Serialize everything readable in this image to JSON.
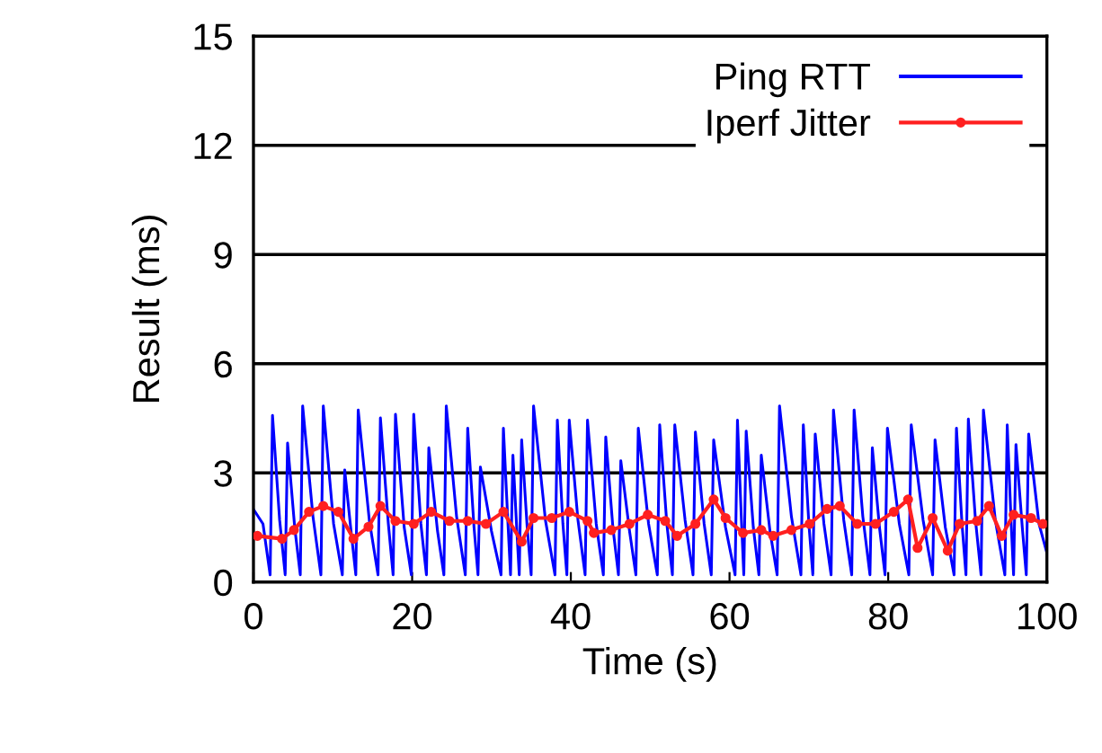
{
  "chart_data": {
    "type": "line",
    "xlabel": "Time (s)",
    "ylabel": "Result (ms)",
    "xlim": [
      0,
      100
    ],
    "ylim": [
      0,
      15
    ],
    "xticks": [
      0,
      20,
      40,
      60,
      80,
      100
    ],
    "yticks": [
      0,
      3,
      6,
      9,
      12,
      15
    ],
    "grid": "y",
    "legend": "top right",
    "series": [
      {
        "name": "Ping RTT",
        "color": "#0000ff",
        "marker": "none",
        "x": [
          0,
          1.2,
          2.1,
          2.4,
          3.3,
          4.0,
          4.3,
          5.2,
          5.9,
          6.2,
          7.5,
          8.5,
          8.8,
          10.1,
          11.2,
          11.5,
          12.3,
          12.9,
          13.2,
          14.6,
          15.7,
          16.0,
          17.0,
          17.6,
          17.9,
          19.0,
          19.9,
          20.2,
          21.1,
          21.8,
          22.1,
          23.2,
          24.0,
          24.3,
          25.6,
          26.7,
          27.0,
          27.8,
          28.3,
          28.6,
          30.0,
          31.2,
          31.5,
          32.1,
          32.4,
          32.7,
          33.2,
          33.5,
          33.8,
          34.5,
          35.0,
          35.3,
          36.8,
          38.0,
          38.3,
          39.0,
          39.5,
          39.8,
          40.9,
          41.8,
          42.1,
          43.2,
          44.1,
          44.4,
          45.3,
          46.0,
          46.3,
          47.4,
          48.2,
          48.5,
          49.8,
          50.9,
          51.2,
          52.1,
          52.8,
          53.1,
          54.4,
          55.4,
          55.7,
          56.8,
          57.7,
          58.0,
          59.5,
          60.7,
          61.0,
          61.5,
          61.8,
          62.1,
          63.0,
          63.7,
          64.0,
          65.1,
          66.0,
          66.3,
          67.8,
          69.0,
          69.3,
          70.0,
          70.5,
          70.8,
          71.9,
          72.8,
          73.1,
          74.4,
          75.4,
          75.7,
          76.8,
          77.7,
          78.0,
          78.9,
          79.6,
          79.9,
          81.4,
          82.6,
          82.9,
          84.4,
          85.6,
          85.9,
          87.2,
          88.3,
          88.6,
          89.3,
          89.8,
          90.1,
          91.0,
          91.7,
          92.0,
          93.5,
          94.7,
          95.0,
          95.5,
          95.8,
          96.1,
          96.9,
          97.4,
          97.7,
          99.0,
          100
        ],
        "values": [
          2.0,
          1.6,
          0.2,
          4.58,
          1.7,
          0.2,
          3.82,
          1.5,
          0.2,
          4.84,
          1.8,
          0.2,
          4.84,
          1.6,
          0.2,
          3.08,
          1.4,
          0.2,
          4.73,
          1.7,
          0.2,
          4.51,
          1.6,
          0.2,
          4.61,
          1.5,
          0.2,
          4.61,
          1.6,
          0.2,
          3.69,
          1.4,
          0.2,
          4.84,
          1.8,
          0.2,
          4.23,
          1.5,
          0.2,
          3.16,
          1.4,
          0.2,
          4.23,
          1.5,
          0.2,
          3.49,
          1.4,
          0.2,
          3.91,
          1.5,
          0.2,
          4.84,
          1.7,
          0.2,
          4.45,
          1.6,
          0.2,
          4.45,
          1.7,
          0.2,
          4.45,
          1.6,
          0.2,
          3.99,
          1.5,
          0.2,
          3.33,
          1.4,
          0.2,
          4.23,
          1.6,
          0.2,
          4.32,
          1.6,
          0.2,
          4.32,
          1.7,
          0.2,
          4.12,
          1.6,
          0.2,
          3.91,
          1.5,
          0.2,
          4.45,
          1.7,
          0.2,
          4.15,
          1.5,
          0.2,
          3.49,
          1.4,
          0.2,
          4.84,
          1.8,
          0.2,
          4.32,
          1.6,
          0.2,
          4.07,
          1.6,
          0.2,
          4.73,
          1.7,
          0.2,
          4.73,
          1.8,
          0.2,
          3.69,
          1.5,
          0.2,
          4.23,
          1.6,
          0.2,
          4.32,
          1.7,
          0.2,
          3.91,
          1.5,
          0.2,
          4.23,
          1.6,
          0.2,
          4.48,
          1.7,
          0.2,
          4.73,
          1.7,
          0.2,
          4.32,
          1.6,
          0.2,
          3.78,
          1.5,
          0.2,
          4.07,
          1.6,
          0.8
        ]
      },
      {
        "name": "Iperf Jitter",
        "color": "#ff2020",
        "marker": "circle",
        "x": [
          0.5,
          3.6,
          5.1,
          7.0,
          8.8,
          10.7,
          12.6,
          14.5,
          16.0,
          17.9,
          20.2,
          22.4,
          24.7,
          27.0,
          29.3,
          31.5,
          33.8,
          35.3,
          37.6,
          39.8,
          42.1,
          42.9,
          45.1,
          47.4,
          49.7,
          51.9,
          53.4,
          55.7,
          58.0,
          59.5,
          61.7,
          64.0,
          65.5,
          67.8,
          70.1,
          72.3,
          73.9,
          76.1,
          78.4,
          80.7,
          82.5,
          83.7,
          85.6,
          87.5,
          89.0,
          91.2,
          92.7,
          94.3,
          95.8,
          98.0,
          99.5
        ],
        "values": [
          1.27,
          1.19,
          1.43,
          1.93,
          2.09,
          1.93,
          1.19,
          1.52,
          2.09,
          1.68,
          1.6,
          1.93,
          1.68,
          1.68,
          1.6,
          1.93,
          1.11,
          1.76,
          1.76,
          1.93,
          1.68,
          1.35,
          1.43,
          1.6,
          1.85,
          1.68,
          1.27,
          1.6,
          2.27,
          1.76,
          1.35,
          1.43,
          1.27,
          1.43,
          1.6,
          2.01,
          2.09,
          1.6,
          1.6,
          1.93,
          2.27,
          0.94,
          1.76,
          0.86,
          1.6,
          1.68,
          2.09,
          1.27,
          1.85,
          1.76,
          1.6
        ]
      }
    ]
  }
}
